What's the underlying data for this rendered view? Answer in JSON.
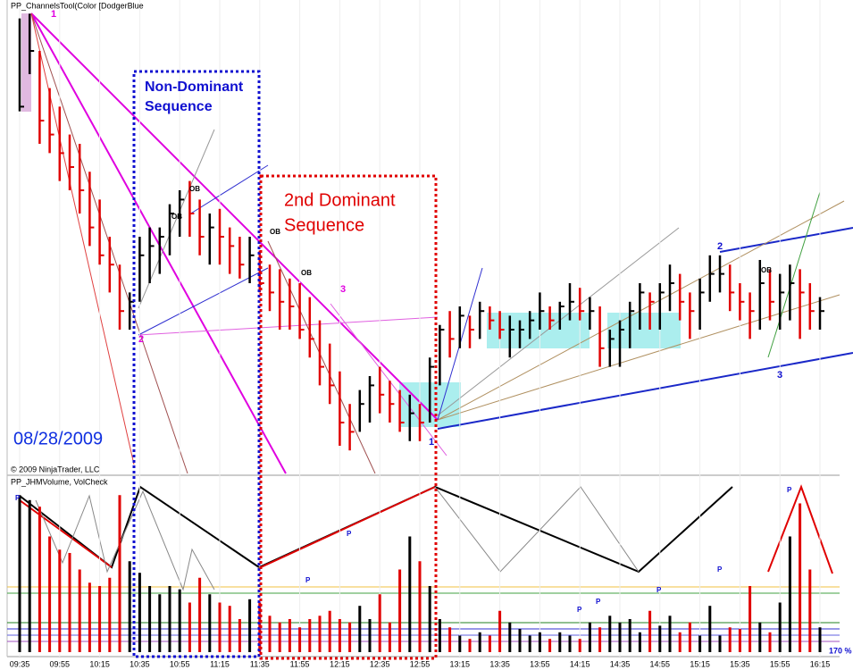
{
  "chart_data": [
    {
      "type": "ohlc",
      "title": "PP_ChannelsTool(Color [DodgerBlue",
      "credit": "© 2009 NinjaTrader, LLC",
      "up_color": "#000000",
      "down_color": "#e00000",
      "ylim": [
        0,
        100
      ],
      "grid": true,
      "x": [
        "09:35",
        null,
        null,
        null,
        "09:55",
        null,
        null,
        null,
        "10:15",
        null,
        null,
        null,
        "10:35",
        null,
        null,
        null,
        "10:55",
        null,
        null,
        null,
        "11:15",
        null,
        null,
        null,
        "11:35",
        null,
        null,
        null,
        "11:55",
        null,
        null,
        null,
        "12:15",
        null,
        null,
        null,
        "12:35",
        null,
        null,
        null,
        "12:55",
        null,
        null,
        null,
        "13:15",
        null,
        null,
        null,
        "13:35",
        null,
        null,
        null,
        "13:55",
        null,
        null,
        null,
        "14:15",
        null,
        null,
        null,
        "14:35",
        null,
        null,
        null,
        "14:55",
        null,
        null,
        null,
        "15:15",
        null,
        null,
        null,
        "15:35",
        null,
        null,
        null,
        "15:55",
        null,
        null,
        null,
        "16:15"
      ],
      "high": [
        97,
        98,
        90,
        82,
        78,
        72,
        70,
        64,
        58,
        50,
        44,
        38,
        50,
        52,
        52,
        57,
        60,
        62,
        58,
        55,
        56,
        52,
        50,
        50,
        47,
        44,
        43,
        41,
        40,
        37,
        32,
        27,
        21,
        14,
        17,
        20,
        22,
        19,
        17,
        16,
        14,
        24,
        31,
        34,
        35,
        33,
        36,
        35,
        34,
        33,
        32,
        34,
        38,
        35,
        36,
        40,
        39,
        37,
        35,
        30,
        32,
        36,
        40,
        38,
        40,
        44,
        42,
        38,
        41,
        46,
        46,
        44,
        40,
        38,
        45,
        43,
        42,
        44,
        43,
        40,
        37
      ],
      "low": [
        77,
        85,
        70,
        68,
        62,
        60,
        55,
        48,
        44,
        38,
        30,
        30,
        36,
        40,
        42,
        46,
        50,
        50,
        46,
        44,
        44,
        42,
        41,
        40,
        38,
        34,
        30,
        30,
        28,
        24,
        18,
        14,
        5,
        4,
        8,
        10,
        12,
        10,
        8,
        6,
        6,
        10,
        18,
        24,
        26,
        26,
        28,
        30,
        28,
        24,
        26,
        28,
        30,
        30,
        30,
        32,
        32,
        30,
        22,
        22,
        22,
        26,
        30,
        30,
        30,
        34,
        32,
        28,
        30,
        36,
        38,
        34,
        32,
        28,
        30,
        32,
        30,
        32,
        28,
        30,
        30
      ],
      "close": [
        78,
        90,
        75,
        72,
        68,
        65,
        60,
        52,
        46,
        44,
        34,
        36,
        46,
        48,
        50,
        55,
        58,
        55,
        50,
        52,
        50,
        48,
        44,
        46,
        40,
        38,
        36,
        35,
        30,
        28,
        22,
        18,
        10,
        8,
        14,
        18,
        16,
        14,
        10,
        12,
        10,
        22,
        30,
        28,
        33,
        30,
        34,
        32,
        30,
        30,
        30,
        32,
        34,
        32,
        35,
        36,
        34,
        34,
        26,
        28,
        30,
        34,
        38,
        36,
        38,
        40,
        36,
        34,
        38,
        42,
        42,
        38,
        36,
        34,
        40,
        36,
        38,
        40,
        38,
        34,
        34
      ],
      "annotations": [
        "1",
        "2",
        "3",
        "OB",
        "OB",
        "OB",
        "OB",
        "OB",
        "Non-Dominant",
        "Sequence",
        "2nd Dominant",
        "Sequence",
        "08/28/2009",
        "1",
        "2",
        "3"
      ]
    },
    {
      "type": "bar",
      "title": "PP_JHMVolume, VolCheck",
      "ylim": [
        0,
        100
      ],
      "values": [
        95,
        92,
        88,
        70,
        62,
        60,
        50,
        42,
        40,
        45,
        95,
        55,
        48,
        40,
        35,
        40,
        38,
        30,
        45,
        35,
        30,
        28,
        20,
        32,
        30,
        22,
        18,
        20,
        15,
        20,
        22,
        25,
        20,
        18,
        28,
        20,
        35,
        18,
        50,
        70,
        55,
        40,
        20,
        15,
        10,
        8,
        12,
        10,
        25,
        18,
        14,
        10,
        12,
        8,
        12,
        10,
        8,
        18,
        15,
        22,
        18,
        20,
        12,
        25,
        16,
        22,
        12,
        18,
        10,
        28,
        10,
        15,
        14,
        40,
        18,
        12,
        30,
        70,
        90,
        50,
        15
      ],
      "annotations": [
        "P",
        "P",
        "P",
        "P",
        "P",
        "P",
        "P",
        "P",
        "170 %"
      ]
    }
  ]
}
